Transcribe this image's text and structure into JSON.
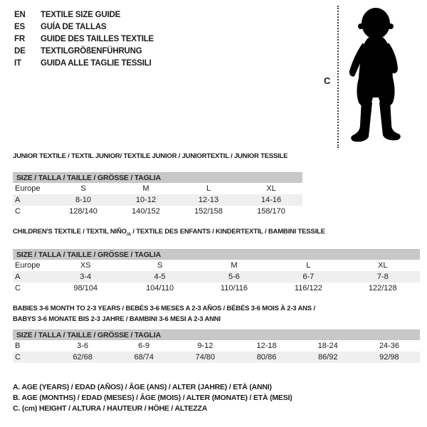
{
  "colors": {
    "background": "#ffffff",
    "text": "#1b1b1b",
    "size_bar_bg": "#c8c8c8",
    "alt_row_bg": "#efefef",
    "silhouette": "#000000",
    "dotted_line": "#404040"
  },
  "language_guide": {
    "items": [
      {
        "code": "EN",
        "label": "TEXTILE SIZE GUIDE"
      },
      {
        "code": "ES",
        "label": "GUÍA DE TALLAS"
      },
      {
        "code": "FR",
        "label": "GUIDE DES TAILLES TEXTILE"
      },
      {
        "code": "DE",
        "label": "TEXTILGRÖßENFÜHRUNG"
      },
      {
        "code": "IT",
        "label": "GUIDA ALLE TAGLIE TESSILI"
      }
    ]
  },
  "figure": {
    "measure_label": "C",
    "icon": "baby-silhouette"
  },
  "size_header": "SIZE / TALLA / TAILLE / GRÖSSE / TAGLIA",
  "junior": {
    "title": "JUNIOR TEXTILE / TEXTIL JUNIOR/ TEXTILE JUNIOR / JUNIORTEXTIL / JUNIOR TESSILE",
    "rows": [
      [
        "Europe",
        "S",
        "M",
        "L",
        "XL"
      ],
      [
        "A",
        "8-10",
        "10-12",
        "12-13",
        "14-16"
      ],
      [
        "C",
        "128/140",
        "140/152",
        "152/158",
        "158/170"
      ]
    ]
  },
  "children": {
    "title_main": "CHILDREN'S TEXTILE / TEXTIL NIÑO",
    "title_sub": "/A",
    "title_rest": " / TEXTILE DES ENFANTS / KINDERTEXTIL / BAMBINI TESSILE",
    "rows": [
      [
        "Europe",
        "XS",
        "S",
        "M",
        "L",
        "XL"
      ],
      [
        "A",
        "3-4",
        "4-5",
        "5-6",
        "6-7",
        "7-8"
      ],
      [
        "C",
        "98/104",
        "104/110",
        "110/116",
        "116/122",
        "122/128"
      ]
    ]
  },
  "babies": {
    "title_line1": "BABIES 3-6 MONTH TO 2-3 YEARS / BEBÉS 3-6 MESES A 2-3 AÑOS / BÉBÉS 3-6 MOIS À 2-3 ANS /",
    "title_line2": "BABYS 3-6 MONATE BIS 2-3 JAHRE / BAMBINI 3-6 MESI A 2-3 ANNI",
    "rows": [
      [
        "B",
        "3-6",
        "6-9",
        "9-12",
        "12-18",
        "18-24",
        "24-36"
      ],
      [
        "C",
        "62/68",
        "68/74",
        "74/80",
        "80/86",
        "86/92",
        "92/98"
      ]
    ]
  },
  "legend": {
    "line_a": "A. AGE (YEARS) / EDAD (AÑOS) / ÂGE (ANS) / ALTER (JAHRE) / ETÀ (ANNI)",
    "line_b": "B. AGE (MONTHS) / EDAD (MESES) / ÂGE (MOIS) / ALTER (MONATE) / ETÀ (MESI)",
    "line_c": "C. (cm) HEIGHT / ALTURA / HAUTEUR / HÖHE / ALTEZZA"
  }
}
